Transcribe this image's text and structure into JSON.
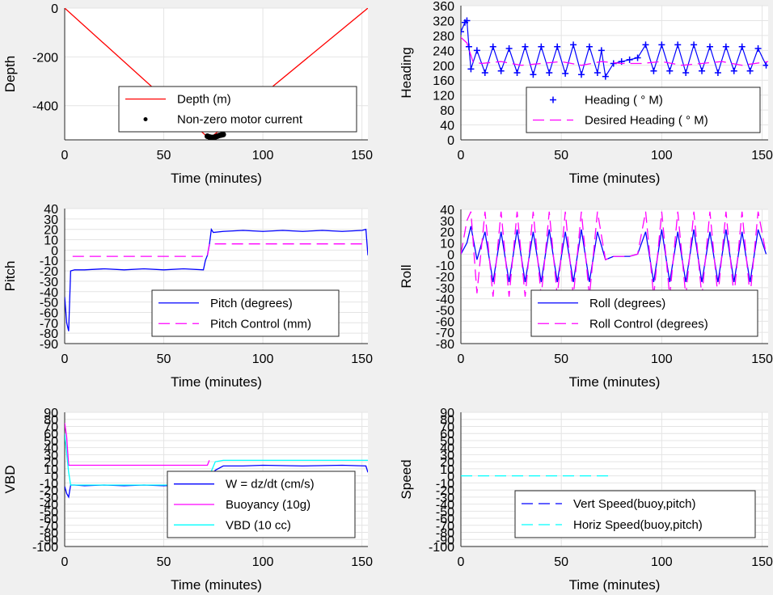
{
  "chart_data": [
    {
      "type": "line",
      "ylabel": "Depth",
      "xlabel": "Time (minutes)",
      "xlim": [
        0,
        153
      ],
      "ylim": [
        -540,
        0
      ],
      "xticks": [
        "0",
        "50",
        "100",
        "150"
      ],
      "yticks": [
        "0",
        "-200",
        "-400"
      ],
      "ytick_values": [
        0,
        -200,
        -400
      ],
      "legend_position": "bottom-right",
      "series": [
        {
          "name": "Depth (m)",
          "color": "#ff0000",
          "style": "solid",
          "x": [
            0,
            73,
            153
          ],
          "y": [
            0,
            -535,
            0
          ]
        },
        {
          "name": "Non-zero motor current",
          "color": "#000000",
          "style": "dot",
          "x": [
            72,
            73,
            74,
            75,
            76,
            77,
            78,
            79,
            80
          ],
          "y": [
            -525,
            -528,
            -530,
            -530,
            -528,
            -525,
            -522,
            -520,
            -518
          ]
        }
      ]
    },
    {
      "type": "line",
      "ylabel": "Heading",
      "xlabel": "Time (minutes)",
      "xlim": [
        0,
        153
      ],
      "ylim": [
        0,
        360
      ],
      "xticks": [
        "0",
        "50",
        "100",
        "150"
      ],
      "yticks": [
        "0",
        "40",
        "80",
        "120",
        "160",
        "200",
        "240",
        "280",
        "320",
        "360"
      ],
      "ytick_values": [
        0,
        40,
        80,
        120,
        160,
        200,
        240,
        280,
        320,
        360
      ],
      "legend_position": "bottom-right",
      "series": [
        {
          "name": "Heading ( ° M)",
          "color": "#0000ff",
          "style": "plus",
          "x": [
            0,
            2,
            3,
            4,
            5,
            8,
            12,
            16,
            20,
            24,
            28,
            32,
            36,
            40,
            44,
            48,
            52,
            56,
            60,
            64,
            68,
            70,
            72,
            76,
            80,
            84,
            88,
            92,
            96,
            100,
            104,
            108,
            112,
            116,
            120,
            124,
            128,
            132,
            136,
            140,
            144,
            148,
            152
          ],
          "y": [
            290,
            315,
            320,
            250,
            190,
            240,
            180,
            250,
            185,
            245,
            180,
            250,
            175,
            250,
            180,
            250,
            178,
            255,
            175,
            250,
            180,
            240,
            170,
            205,
            210,
            215,
            220,
            255,
            185,
            255,
            185,
            255,
            180,
            255,
            185,
            250,
            180,
            250,
            185,
            250,
            185,
            245,
            200
          ]
        },
        {
          "name": "Desired Heading ( ° M)",
          "color": "#ff00ff",
          "style": "dash",
          "x": [
            0,
            3,
            6,
            10,
            20,
            30,
            40,
            50,
            60,
            70,
            80,
            90,
            100,
            110,
            120,
            130,
            140,
            153
          ],
          "y": [
            275,
            260,
            210,
            205,
            210,
            200,
            205,
            210,
            200,
            210,
            205,
            205,
            210,
            200,
            205,
            210,
            200,
            210
          ]
        }
      ]
    },
    {
      "type": "line",
      "ylabel": "Pitch",
      "xlabel": "Time (minutes)",
      "xlim": [
        0,
        153
      ],
      "ylim": [
        -90,
        40
      ],
      "xticks": [
        "0",
        "50",
        "100",
        "150"
      ],
      "yticks": [
        "40",
        "30",
        "20",
        "10",
        "0",
        "-10",
        "-20",
        "-30",
        "-40",
        "-50",
        "-60",
        "-70",
        "-80",
        "-90"
      ],
      "ytick_values": [
        40,
        30,
        20,
        10,
        0,
        -10,
        -20,
        -30,
        -40,
        -50,
        -60,
        -70,
        -80,
        -90
      ],
      "legend_position": "bottom-right",
      "series": [
        {
          "name": "Pitch (degrees)",
          "color": "#0000ff",
          "style": "solid",
          "x": [
            0,
            1,
            2,
            3,
            5,
            10,
            20,
            30,
            40,
            50,
            60,
            70,
            71,
            72,
            73,
            74,
            75,
            80,
            90,
            100,
            110,
            120,
            130,
            140,
            150,
            152,
            153
          ],
          "y": [
            -45,
            -70,
            -78,
            -20,
            -19,
            -19,
            -18,
            -19,
            -18,
            -19,
            -18,
            -19,
            -10,
            -5,
            5,
            20,
            17,
            18,
            19,
            18,
            19,
            18,
            19,
            18,
            19,
            20,
            -5
          ]
        },
        {
          "name": "Pitch Control (mm)",
          "color": "#ff00ff",
          "style": "dash",
          "x": [
            4,
            72,
            73,
            150
          ],
          "y": [
            -6,
            -6,
            6,
            6
          ]
        }
      ]
    },
    {
      "type": "line",
      "ylabel": "Roll",
      "xlabel": "Time (minutes)",
      "xlim": [
        0,
        153
      ],
      "ylim": [
        -80,
        40
      ],
      "xticks": [
        "0",
        "50",
        "100",
        "150"
      ],
      "yticks": [
        "40",
        "30",
        "20",
        "10",
        "0",
        "-10",
        "-20",
        "-30",
        "-40",
        "-50",
        "-60",
        "-70",
        "-80"
      ],
      "ytick_values": [
        40,
        30,
        20,
        10,
        0,
        -10,
        -20,
        -30,
        -40,
        -50,
        -60,
        -70,
        -80
      ],
      "legend_position": "bottom-right",
      "series": [
        {
          "name": "Roll (degrees)",
          "color": "#0000ff",
          "style": "solid",
          "x": [
            0,
            3,
            5,
            8,
            12,
            16,
            20,
            24,
            28,
            32,
            36,
            40,
            44,
            48,
            52,
            56,
            60,
            64,
            68,
            72,
            76,
            80,
            84,
            88,
            92,
            96,
            100,
            104,
            108,
            112,
            116,
            120,
            124,
            128,
            132,
            136,
            140,
            144,
            148,
            152
          ],
          "y": [
            0,
            10,
            25,
            -5,
            20,
            -25,
            20,
            -25,
            22,
            -25,
            20,
            -25,
            22,
            -25,
            20,
            -25,
            22,
            -25,
            20,
            -5,
            -2,
            -2,
            -2,
            0,
            20,
            -25,
            22,
            -25,
            20,
            -25,
            22,
            -25,
            20,
            -25,
            22,
            -25,
            20,
            -25,
            22,
            0
          ]
        },
        {
          "name": "Roll Control (degrees)",
          "color": "#ff00ff",
          "style": "dash",
          "x": [
            0,
            3,
            5,
            8,
            12,
            16,
            20,
            24,
            28,
            32,
            36,
            40,
            44,
            48,
            52,
            56,
            60,
            64,
            68,
            72,
            76,
            80,
            84,
            88,
            92,
            96,
            100,
            104,
            108,
            112,
            116,
            120,
            124,
            128,
            132,
            136,
            140,
            144,
            148,
            152
          ],
          "y": [
            0,
            30,
            38,
            -35,
            38,
            -38,
            38,
            -38,
            38,
            -38,
            38,
            -38,
            38,
            -38,
            38,
            -38,
            38,
            -38,
            38,
            -5,
            -2,
            -2,
            -2,
            0,
            38,
            -38,
            38,
            -38,
            38,
            -38,
            38,
            -38,
            38,
            -38,
            38,
            -38,
            38,
            -38,
            38,
            0
          ]
        }
      ]
    },
    {
      "type": "line",
      "ylabel": "VBD",
      "xlabel": "Time (minutes)",
      "xlim": [
        0,
        153
      ],
      "ylim": [
        -100,
        90
      ],
      "xticks": [
        "0",
        "50",
        "100",
        "150"
      ],
      "yticks": [
        "90",
        "80",
        "70",
        "60",
        "50",
        "40",
        "30",
        "20",
        "10",
        "0",
        "-10",
        "-20",
        "-30",
        "-40",
        "-50",
        "-60",
        "-70",
        "-80",
        "-90",
        "-100"
      ],
      "ytick_values": [
        90,
        80,
        70,
        60,
        50,
        40,
        30,
        20,
        10,
        0,
        -10,
        -20,
        -30,
        -40,
        -50,
        -60,
        -70,
        -80,
        -90,
        -100
      ],
      "legend_position": "bottom-right",
      "series": [
        {
          "name": "W = dz/dt (cm/s)",
          "color": "#0000ff",
          "style": "solid",
          "x": [
            0,
            1,
            2,
            3,
            5,
            10,
            20,
            30,
            40,
            50,
            60,
            70,
            72,
            74,
            76,
            80,
            90,
            100,
            120,
            140,
            152,
            153
          ],
          "y": [
            -15,
            -25,
            -30,
            -13,
            -13,
            -14,
            -13,
            -14,
            -13,
            -14,
            -13,
            -14,
            -10,
            0,
            8,
            14,
            14,
            15,
            14,
            15,
            14,
            5
          ]
        },
        {
          "name": "Buoyancy (10g)",
          "color": "#ff00ff",
          "style": "solid",
          "x": [
            0,
            1,
            2,
            3,
            5,
            72,
            73
          ],
          "y": [
            75,
            55,
            15,
            15,
            15,
            15,
            22
          ]
        },
        {
          "name": "VBD (10 cc)",
          "color": "#00ffff",
          "style": "solid",
          "x": [
            0,
            2,
            3,
            5,
            72,
            73,
            76,
            80,
            153
          ],
          "y": [
            60,
            5,
            -13,
            -13,
            -13,
            0,
            20,
            22,
            22
          ]
        }
      ]
    },
    {
      "type": "line",
      "ylabel": "Speed",
      "xlabel": "Time (minutes)",
      "xlim": [
        0,
        153
      ],
      "ylim": [
        -100,
        90
      ],
      "xticks": [
        "0",
        "50",
        "100",
        "150"
      ],
      "yticks": [
        "90",
        "80",
        "70",
        "60",
        "50",
        "40",
        "30",
        "20",
        "10",
        "0",
        "-10",
        "-20",
        "-30",
        "-40",
        "-50",
        "-60",
        "-70",
        "-80",
        "-90",
        "-100"
      ],
      "ytick_values": [
        90,
        80,
        70,
        60,
        50,
        40,
        30,
        20,
        10,
        0,
        -10,
        -20,
        -30,
        -40,
        -50,
        -60,
        -70,
        -80,
        -90,
        -100
      ],
      "legend_position": "bottom-right",
      "series": [
        {
          "name": "Vert Speed(buoy,pitch)",
          "color": "#0000ff",
          "style": "dash",
          "x": [],
          "y": []
        },
        {
          "name": "Horiz Speed(buoy,pitch)",
          "color": "#00ffff",
          "style": "dash",
          "x": [
            0,
            74
          ],
          "y": [
            0,
            0
          ]
        }
      ]
    }
  ]
}
